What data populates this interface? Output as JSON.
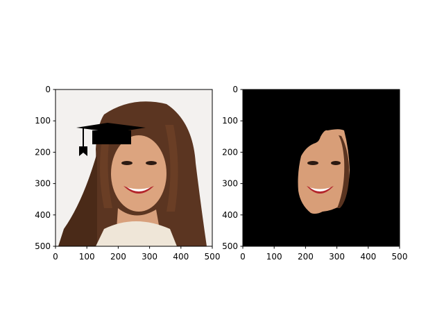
{
  "chart_data": [
    {
      "type": "image",
      "title": "",
      "xlabel": "",
      "ylabel": "",
      "xlim": [
        0,
        500
      ],
      "ylim": [
        500,
        0
      ],
      "xticks": [
        "0",
        "100",
        "200",
        "300",
        "400",
        "500"
      ],
      "yticks": [
        "0",
        "100",
        "200",
        "300",
        "400",
        "500"
      ],
      "content": "portrait of smiling woman with long brown hair and a black graduation cap overlay",
      "cap_overlay": {
        "x_range": [
          65,
          290
        ],
        "y_range": [
          105,
          210
        ]
      },
      "colors": {
        "background": "#f4f1ee",
        "hair": "#5a3420",
        "skin": "#d9a07a",
        "cap": "#000000"
      }
    },
    {
      "type": "image",
      "title": "",
      "xlabel": "",
      "ylabel": "",
      "xlim": [
        0,
        500
      ],
      "ylim": [
        500,
        0
      ],
      "xticks": [
        "0",
        "100",
        "200",
        "300",
        "400",
        "500"
      ],
      "yticks": [
        "0",
        "100",
        "200",
        "300",
        "400",
        "500"
      ],
      "content": "face region segmented from portrait on black background",
      "mask_extent": {
        "x_range": [
          170,
          345
        ],
        "y_range": [
          125,
          395
        ]
      },
      "colors": {
        "background": "#000000",
        "skin": "#d9a07a"
      }
    }
  ]
}
